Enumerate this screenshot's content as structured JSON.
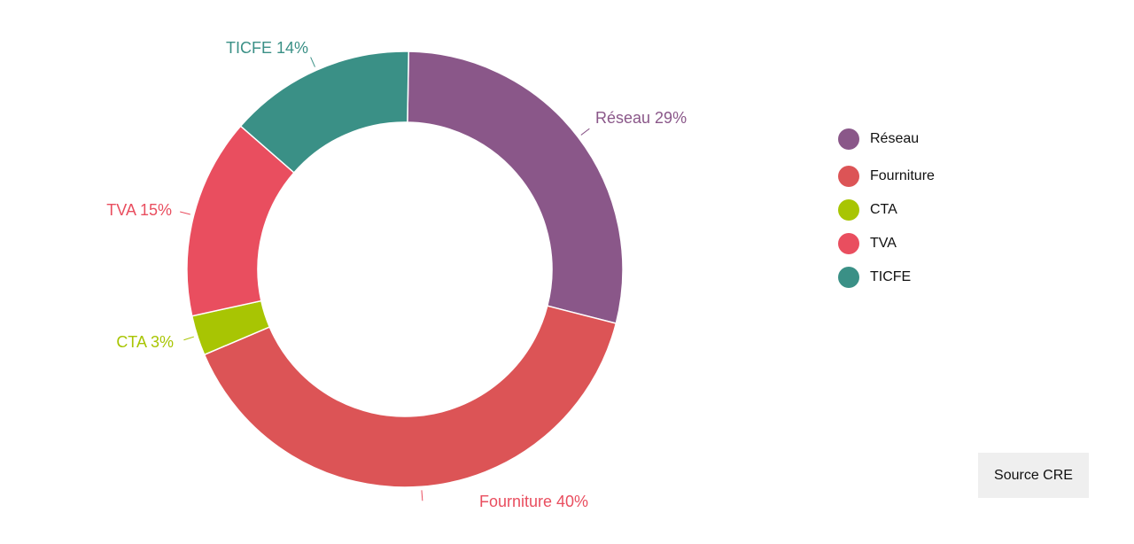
{
  "chart_data": {
    "type": "pie",
    "donut": true,
    "title": "",
    "slices": [
      {
        "name": "Réseau",
        "value": 29,
        "label": "Réseau 29%",
        "color": "#8a5789"
      },
      {
        "name": "Fourniture",
        "value": 40,
        "label": "Fourniture 40%",
        "color": "#dc5456"
      },
      {
        "name": "CTA",
        "value": 3,
        "label": "CTA 3%",
        "color": "#a8c503"
      },
      {
        "name": "TVA",
        "value": 15,
        "label": "TVA 15%",
        "color": "#e94e5f"
      },
      {
        "name": "TICFE",
        "value": 14,
        "label": "TICFE 14%",
        "color": "#3a9086"
      }
    ],
    "label_colors": {
      "Réseau": "#8a5789",
      "Fourniture": "#e94e5f",
      "CTA": "#a8c503",
      "TVA": "#e94e5f",
      "TICFE": "#3a9086"
    },
    "legend_position": "right",
    "legend": [
      "Réseau",
      "Fourniture",
      "CTA",
      "TVA",
      "TICFE"
    ]
  },
  "source": {
    "label": "Source CRE"
  }
}
